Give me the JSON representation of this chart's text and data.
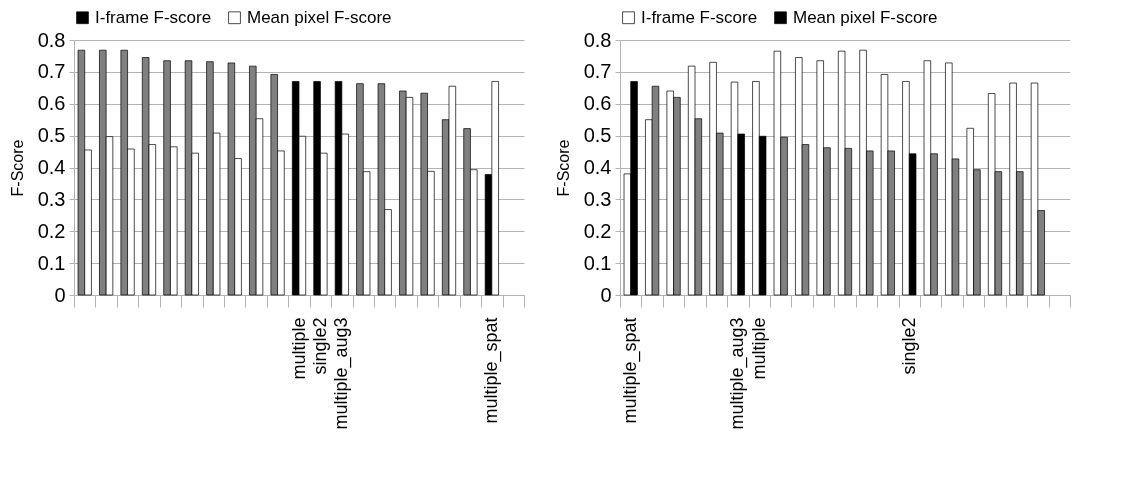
{
  "chart_data": [
    {
      "type": "bar",
      "ylabel": "F-Score",
      "ylim": [
        0,
        0.8
      ],
      "yticks": [
        0,
        0.1,
        0.2,
        0.3,
        0.4,
        0.5,
        0.6,
        0.7,
        0.8
      ],
      "grid": "y",
      "legend": "top left",
      "categories": [
        null,
        null,
        null,
        null,
        null,
        null,
        null,
        null,
        null,
        null,
        "multiple",
        "single2",
        "multiple_aug3",
        null,
        null,
        null,
        null,
        null,
        null,
        "multiple_spat",
        null
      ],
      "series": [
        {
          "name": "I-frame F-score",
          "color": "#000000",
          "colors": [
            "#808080",
            "#808080",
            "#808080",
            "#808080",
            "#808080",
            "#808080",
            "#808080",
            "#808080",
            "#808080",
            "#808080",
            "#000000",
            "#000000",
            "#000000",
            "#808080",
            "#808080",
            "#808080",
            "#808080",
            "#808080",
            "#808080",
            "#000000",
            "#808080"
          ],
          "values": [
            0.768,
            0.768,
            0.768,
            0.745,
            0.735,
            0.735,
            0.732,
            0.728,
            0.718,
            0.692,
            0.67,
            0.67,
            0.67,
            0.663,
            0.663,
            0.64,
            0.633,
            0.55,
            0.522,
            0.378,
            0
          ]
        },
        {
          "name": "Mean pixel F-score",
          "color": "#ffffff",
          "values": [
            0.455,
            0.497,
            0.458,
            0.472,
            0.465,
            0.445,
            0.508,
            0.428,
            0.553,
            0.452,
            0.498,
            0.445,
            0.505,
            0.387,
            0.268,
            0.62,
            0.388,
            0.655,
            0.393,
            0.67,
            0
          ]
        }
      ]
    },
    {
      "type": "bar",
      "ylabel": "F-Score",
      "ylim": [
        0,
        0.8
      ],
      "yticks": [
        0,
        0.1,
        0.2,
        0.3,
        0.4,
        0.5,
        0.6,
        0.7,
        0.8
      ],
      "grid": "y",
      "legend": "top left",
      "categories": [
        "multiple_spat",
        null,
        null,
        null,
        null,
        "multiple_aug3",
        "multiple",
        null,
        null,
        null,
        null,
        null,
        null,
        "single2",
        null,
        null,
        null,
        null,
        null,
        null,
        null
      ],
      "series": [
        {
          "name": "I-frame F-score",
          "color": "#ffffff",
          "values": [
            0.38,
            0.55,
            0.64,
            0.718,
            0.73,
            0.668,
            0.67,
            0.765,
            0.745,
            0.735,
            0.765,
            0.768,
            0.692,
            0.67,
            0.735,
            0.728,
            0.523,
            0.632,
            0.665,
            0.665,
            0
          ]
        },
        {
          "name": "Mean pixel F-score",
          "color": "#000000",
          "colors": [
            "#000000",
            "#808080",
            "#808080",
            "#808080",
            "#808080",
            "#000000",
            "#000000",
            "#808080",
            "#808080",
            "#808080",
            "#808080",
            "#808080",
            "#808080",
            "#000000",
            "#808080",
            "#808080",
            "#808080",
            "#808080",
            "#808080",
            "#808080",
            "#808080"
          ],
          "values": [
            0.67,
            0.655,
            0.62,
            0.553,
            0.508,
            0.505,
            0.498,
            0.495,
            0.472,
            0.462,
            0.46,
            0.452,
            0.452,
            0.443,
            0.443,
            0.427,
            0.393,
            0.387,
            0.387,
            0.265,
            0
          ]
        }
      ]
    }
  ]
}
